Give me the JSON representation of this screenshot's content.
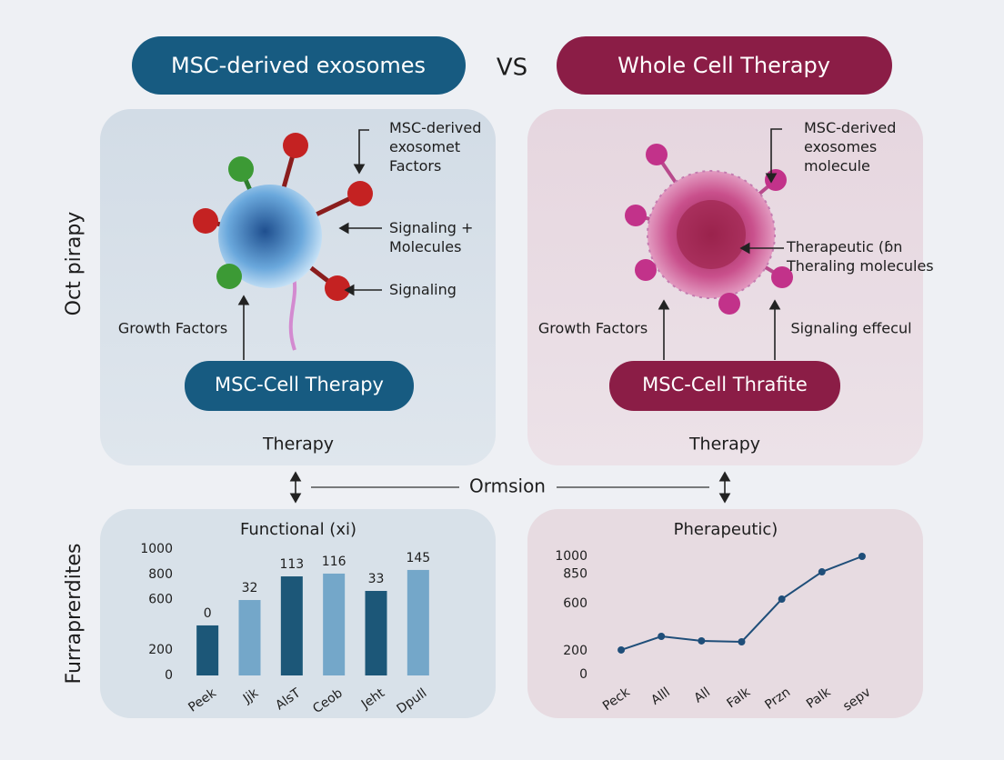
{
  "header": {
    "left_title": "MSC-derived exosomes",
    "vs": "VS",
    "right_title": "Whole Cell Therapy"
  },
  "side_labels": [
    "Oct pirapy",
    "Furraprerdites"
  ],
  "panels": [
    {
      "callouts": [
        [
          "MSC-derived",
          "exosomet",
          "Factors"
        ],
        [
          "Signaling +",
          "Molecules"
        ],
        [
          "Signaling"
        ],
        [
          "Growth Factors"
        ]
      ],
      "button": "MSC-Cell Therapy",
      "footer": "Therapy"
    },
    {
      "callouts": [
        [
          "MSC-derived",
          "exosomes",
          "molecule"
        ],
        [
          "Therapeutic (ɓn",
          "Theraling molecules"
        ],
        [
          "Growth Factors"
        ],
        [
          "Signaling effecul"
        ]
      ],
      "button": "MSC-Cell Thrafite",
      "footer": "Therapy"
    }
  ],
  "connector": "Ormsion",
  "chart_data": [
    {
      "type": "bar",
      "title": "Functional (xi)",
      "categories": [
        "Peek",
        "Jjk",
        "AlsT",
        "Ceob",
        "Jeht",
        "Dpull"
      ],
      "values": [
        396,
        597,
        784,
        806,
        669,
        835
      ],
      "annotations": [
        "0",
        "32",
        "113",
        "116",
        "33",
        "145"
      ],
      "colors": [
        "#1c5778",
        "#74a7c9",
        "#1c5778",
        "#74a7c9",
        "#1c5778",
        "#74a7c9"
      ],
      "ylim": [
        0,
        1000
      ],
      "yticks": [
        0,
        200,
        600,
        800,
        1000
      ]
    },
    {
      "type": "line",
      "title": "Pherapeutic)",
      "categories": [
        "Peck",
        "Alll",
        "All",
        "Falk",
        "Przn",
        "Palk",
        "sepv"
      ],
      "values": [
        208,
        323,
        285,
        277,
        638,
        869,
        1000
      ],
      "color": "#1f4e79",
      "ylim": [
        0,
        1000
      ],
      "yticks": [
        0,
        200,
        600,
        850,
        1000
      ]
    }
  ]
}
